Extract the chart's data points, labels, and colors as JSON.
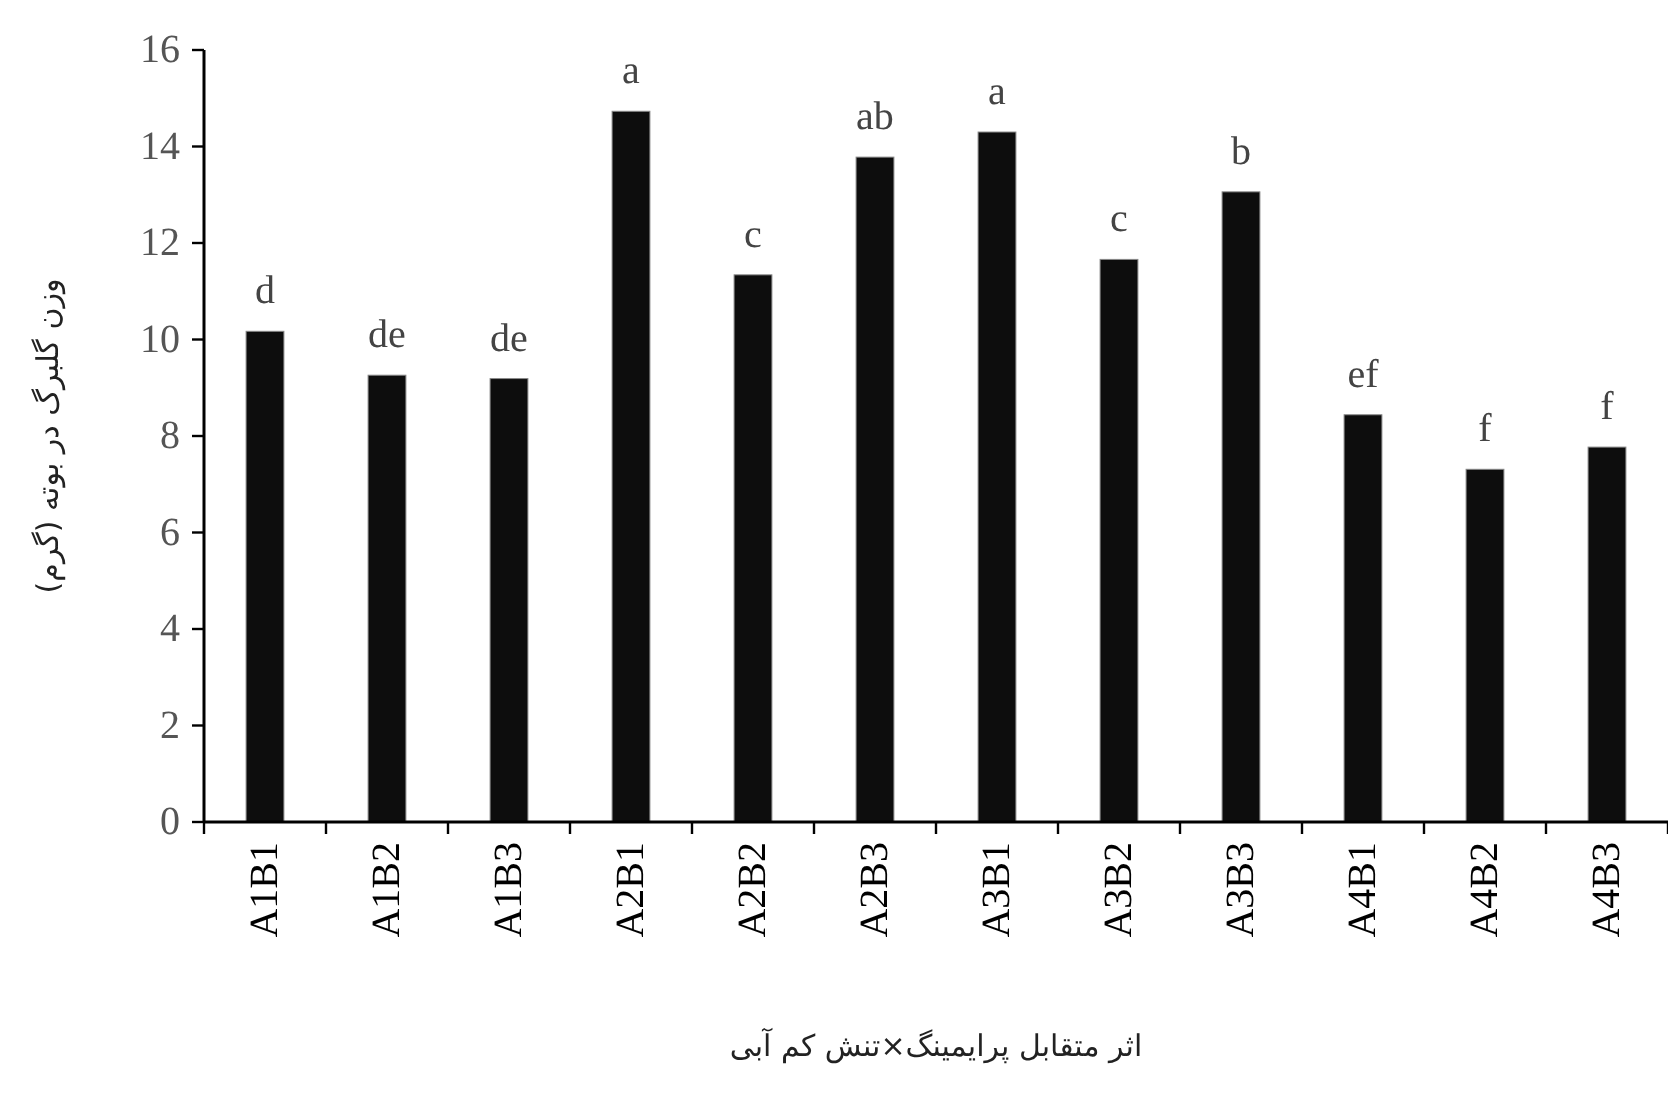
{
  "chart_data": {
    "type": "bar",
    "xlabel": "اثر متقابل پرایمینگ×تنش کم آبی",
    "ylabel": "وزن گلبرگ در بوته (گرم)",
    "categories": [
      "A1B1",
      "A1B2",
      "A1B3",
      "A2B1",
      "A2B2",
      "A2B3",
      "A3B1",
      "A3B2",
      "A3B3",
      "A4B1",
      "A4B2",
      "A4B3"
    ],
    "values": [
      10.17,
      9.26,
      9.19,
      14.73,
      11.34,
      13.78,
      14.3,
      11.66,
      13.06,
      8.44,
      7.31,
      7.77
    ],
    "color": "#0d0d0d",
    "ylim": [
      0,
      16
    ],
    "yticks": [
      0,
      2,
      4,
      6,
      8,
      10,
      12,
      14,
      16
    ],
    "annotations": [
      {
        "text": "d",
        "x": "A1B1",
        "y": 10.17
      },
      {
        "text": "de",
        "x": "A1B2",
        "y": 9.26
      },
      {
        "text": "de",
        "x": "A1B3",
        "y": 9.19
      },
      {
        "text": "a",
        "x": "A2B1",
        "y": 14.73
      },
      {
        "text": "c",
        "x": "A2B2",
        "y": 11.34
      },
      {
        "text": "ab",
        "x": "A2B3",
        "y": 13.78
      },
      {
        "text": "a",
        "x": "A3B1",
        "y": 14.3
      },
      {
        "text": "c",
        "x": "A3B2",
        "y": 11.66
      },
      {
        "text": "b",
        "x": "A3B3",
        "y": 13.06
      },
      {
        "text": "ef",
        "x": "A4B1",
        "y": 8.44
      },
      {
        "text": "f",
        "x": "A4B2",
        "y": 7.31
      },
      {
        "text": "f",
        "x": "A4B3",
        "y": 7.77
      }
    ]
  }
}
